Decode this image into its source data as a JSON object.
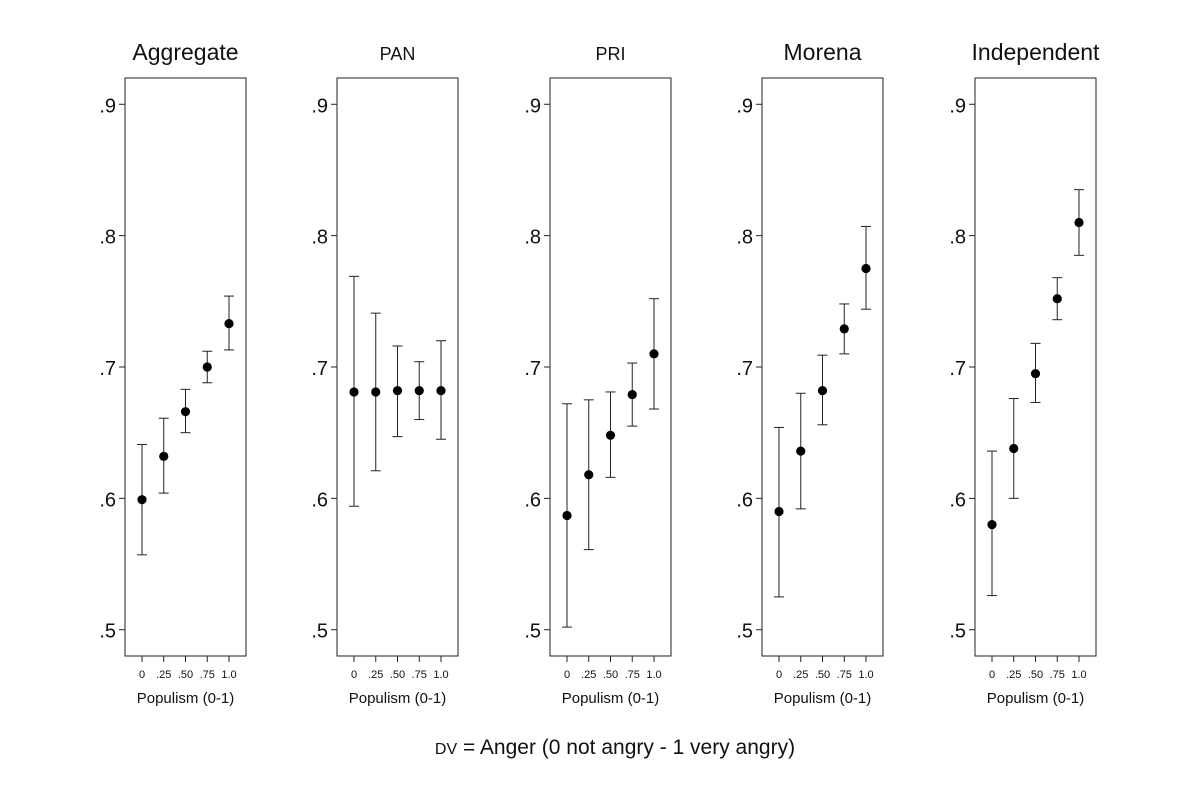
{
  "caption": {
    "dv_prefix": "DV",
    "dv_text": " = Anger (0 not angry - 1 very angry)"
  },
  "chart_data": {
    "type": "scatter",
    "subtype": "point-with-error-bars",
    "shared_xlabel": "Populism (0-1)",
    "x_values": [
      0,
      0.25,
      0.5,
      0.75,
      1.0
    ],
    "x_tick_labels": [
      "0",
      ".25",
      ".50",
      ".75",
      "1.0"
    ],
    "ylim": [
      0.48,
      0.92
    ],
    "y_ticks": [
      0.5,
      0.6,
      0.7,
      0.8,
      0.9
    ],
    "y_tick_labels": [
      ".5",
      ".6",
      ".7",
      ".8",
      ".9"
    ],
    "grid": false,
    "panels": [
      {
        "title": "Aggregate",
        "title_size": "large",
        "xlabel": "Populism (0-1)",
        "values": [
          0.599,
          0.632,
          0.666,
          0.7,
          0.733
        ],
        "lower": [
          0.557,
          0.604,
          0.65,
          0.688,
          0.713
        ],
        "upper": [
          0.641,
          0.661,
          0.683,
          0.712,
          0.754
        ]
      },
      {
        "title": "PAN",
        "title_size": "small",
        "xlabel": "Populism (0-1)",
        "values": [
          0.681,
          0.681,
          0.682,
          0.682,
          0.682
        ],
        "lower": [
          0.594,
          0.621,
          0.647,
          0.66,
          0.645
        ],
        "upper": [
          0.769,
          0.741,
          0.716,
          0.704,
          0.72
        ]
      },
      {
        "title": "PRI",
        "title_size": "small",
        "xlabel": "Populism (0-1)",
        "values": [
          0.587,
          0.618,
          0.648,
          0.679,
          0.71
        ],
        "lower": [
          0.502,
          0.561,
          0.616,
          0.655,
          0.668
        ],
        "upper": [
          0.672,
          0.675,
          0.681,
          0.703,
          0.752
        ]
      },
      {
        "title": "Morena",
        "title_size": "large",
        "xlabel": "Populism (0-1)",
        "values": [
          0.59,
          0.636,
          0.682,
          0.729,
          0.775
        ],
        "lower": [
          0.525,
          0.592,
          0.656,
          0.71,
          0.744
        ],
        "upper": [
          0.654,
          0.68,
          0.709,
          0.748,
          0.807
        ]
      },
      {
        "title": "Independent",
        "title_size": "large",
        "xlabel": "Populism (0-1)",
        "values": [
          0.58,
          0.638,
          0.695,
          0.752,
          0.81
        ],
        "lower": [
          0.526,
          0.6,
          0.673,
          0.736,
          0.785
        ],
        "upper": [
          0.636,
          0.676,
          0.718,
          0.768,
          0.835
        ]
      }
    ]
  }
}
